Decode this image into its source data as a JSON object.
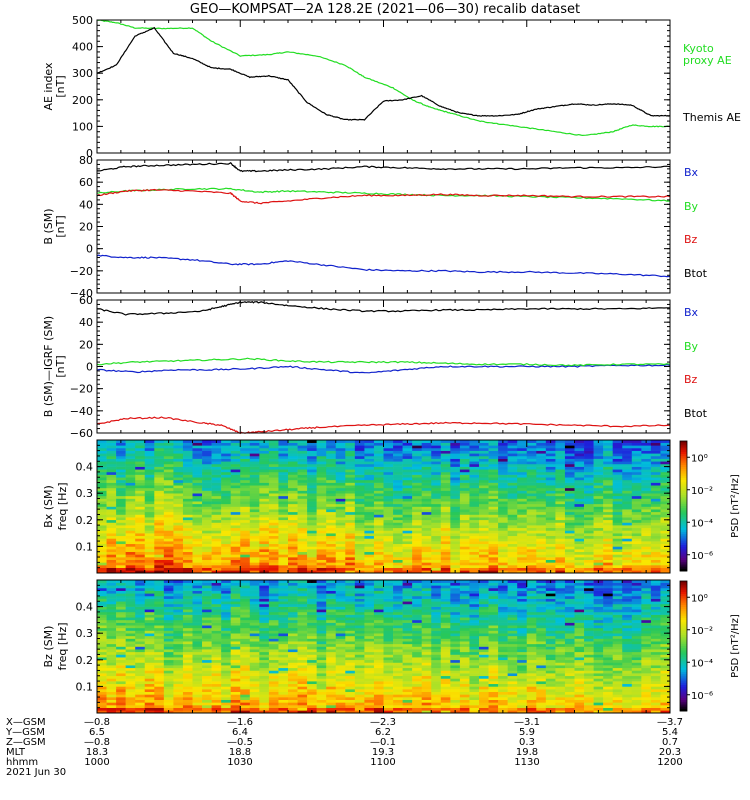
{
  "title": "GEO—KOMPSAT—2A 128.2E (2021—06—30) recalib dataset",
  "colors": {
    "black": "#000000",
    "green": "#22dd22",
    "red": "#dd1111",
    "blue": "#1122cc"
  },
  "chart_data": [
    {
      "type": "line",
      "ylabel_lines": [
        "AE index",
        "[nT]"
      ],
      "ylim": [
        0,
        500
      ],
      "yticks": [
        0,
        100,
        200,
        300,
        400,
        500
      ],
      "xlim": [
        0,
        120
      ],
      "legend_placement": "right",
      "series": [
        {
          "name": "Kyoto proxy AE",
          "label_lines": [
            "Kyoto",
            "proxy AE"
          ],
          "color": "#22dd22",
          "x": [
            0,
            4,
            8,
            14,
            20,
            24,
            30,
            36,
            40,
            46,
            52,
            56,
            62,
            66,
            70,
            74,
            80,
            84,
            90,
            96,
            102,
            108,
            112,
            116,
            120
          ],
          "y": [
            500,
            490,
            470,
            468,
            470,
            420,
            365,
            370,
            380,
            365,
            330,
            285,
            245,
            200,
            170,
            150,
            120,
            110,
            95,
            80,
            65,
            80,
            105,
            100,
            100
          ]
        },
        {
          "name": "Themis AE",
          "label_lines": [
            "Themis AE"
          ],
          "color": "#000000",
          "x": [
            0,
            4,
            8,
            12,
            16,
            20,
            24,
            28,
            32,
            36,
            40,
            44,
            48,
            52,
            56,
            60,
            64,
            68,
            72,
            76,
            80,
            84,
            88,
            92,
            96,
            100,
            104,
            108,
            112,
            116,
            120
          ],
          "y": [
            300,
            330,
            440,
            470,
            375,
            355,
            320,
            315,
            285,
            290,
            275,
            190,
            145,
            125,
            125,
            195,
            200,
            215,
            175,
            150,
            140,
            140,
            145,
            165,
            175,
            185,
            180,
            185,
            180,
            140,
            140
          ]
        }
      ]
    },
    {
      "type": "line",
      "ylabel_lines": [
        "B (SM)",
        "[nT]"
      ],
      "ylim": [
        -40,
        80
      ],
      "yticks": [
        -40,
        -20,
        0,
        20,
        40,
        60,
        80
      ],
      "xlim": [
        0,
        120
      ],
      "legend_placement": "right",
      "series": [
        {
          "name": "Bx",
          "color": "#1122cc",
          "x": [
            0,
            6,
            12,
            20,
            28,
            34,
            40,
            48,
            56,
            64,
            72,
            80,
            90,
            100,
            110,
            120
          ],
          "y": [
            -6,
            -8,
            -8,
            -10,
            -14,
            -14,
            -11,
            -15,
            -19,
            -20,
            -20,
            -21,
            -21,
            -22,
            -23,
            -25
          ]
        },
        {
          "name": "By",
          "color": "#22dd22",
          "x": [
            0,
            6,
            12,
            20,
            28,
            34,
            40,
            48,
            56,
            64,
            72,
            80,
            90,
            100,
            110,
            120
          ],
          "y": [
            50,
            52,
            53,
            54,
            54,
            51,
            52,
            51,
            50,
            49,
            48,
            48,
            47,
            46,
            45,
            43
          ]
        },
        {
          "name": "Bz",
          "color": "#dd1111",
          "x": [
            0,
            6,
            12,
            20,
            28,
            30,
            34,
            40,
            48,
            56,
            64,
            72,
            80,
            90,
            100,
            110,
            120
          ],
          "y": [
            48,
            52,
            53,
            52,
            50,
            43,
            41,
            43,
            46,
            48,
            48,
            49,
            48,
            48,
            47,
            47,
            47
          ]
        },
        {
          "name": "Btot",
          "color": "#000000",
          "x": [
            0,
            6,
            12,
            20,
            28,
            30,
            34,
            40,
            48,
            56,
            64,
            72,
            80,
            90,
            100,
            110,
            120
          ],
          "y": [
            70,
            74,
            75,
            76,
            77,
            70,
            70,
            71,
            72,
            74,
            73,
            72,
            72,
            72,
            73,
            73,
            74
          ]
        }
      ]
    },
    {
      "type": "line",
      "ylabel_lines": [
        "B (SM)—IGRF (SM)",
        "[nT]"
      ],
      "ylim": [
        -60,
        60
      ],
      "yticks": [
        -60,
        -40,
        -20,
        0,
        20,
        40,
        60
      ],
      "xlim": [
        0,
        120
      ],
      "legend_placement": "right",
      "series": [
        {
          "name": "Bx",
          "color": "#1122cc",
          "x": [
            0,
            8,
            16,
            24,
            32,
            40,
            48,
            56,
            64,
            72,
            80,
            90,
            100,
            110,
            120
          ],
          "y": [
            -3,
            -5,
            -3,
            -3,
            -2,
            0,
            -3,
            -6,
            -3,
            0,
            0,
            0,
            0,
            1,
            1
          ]
        },
        {
          "name": "By",
          "color": "#22dd22",
          "x": [
            0,
            8,
            16,
            24,
            32,
            40,
            48,
            56,
            64,
            72,
            80,
            90,
            100,
            110,
            120
          ],
          "y": [
            2,
            4,
            5,
            6,
            7,
            5,
            4,
            4,
            4,
            3,
            2,
            2,
            1,
            2,
            2
          ]
        },
        {
          "name": "Bz",
          "color": "#dd1111",
          "x": [
            0,
            6,
            14,
            22,
            26,
            30,
            34,
            40,
            46,
            56,
            64,
            72,
            80,
            90,
            100,
            110,
            120
          ],
          "y": [
            -52,
            -47,
            -46,
            -51,
            -53,
            -60,
            -59,
            -57,
            -55,
            -53,
            -52,
            -51,
            -51,
            -52,
            -53,
            -54,
            -53
          ]
        },
        {
          "name": "Btot",
          "color": "#000000",
          "x": [
            0,
            6,
            14,
            22,
            26,
            30,
            34,
            40,
            48,
            56,
            64,
            72,
            80,
            90,
            100,
            110,
            120
          ],
          "y": [
            52,
            47,
            48,
            50,
            54,
            58,
            58,
            55,
            52,
            50,
            50,
            51,
            51,
            52,
            52,
            52,
            53
          ]
        }
      ]
    },
    {
      "type": "heatmap",
      "ylabel_lines": [
        "Bx (SM)",
        "freq [Hz]"
      ],
      "ylim": [
        0,
        0.5
      ],
      "yticks": [
        0.1,
        0.2,
        0.3,
        0.4
      ],
      "colorbar": {
        "label": "PSD [nT²/Hz]",
        "ticks": [
          "10⁰",
          "10⁻²",
          "10⁻⁴",
          "10⁻⁶"
        ],
        "exponent_range": [
          -7,
          1
        ]
      }
    },
    {
      "type": "heatmap",
      "ylabel_lines": [
        "Bz (SM)",
        "freq [Hz]"
      ],
      "ylim": [
        0,
        0.5
      ],
      "yticks": [
        0.1,
        0.2,
        0.3,
        0.4
      ],
      "colorbar": {
        "label": "PSD [nT²/Hz]",
        "ticks": [
          "10⁰",
          "10⁻²",
          "10⁻⁴",
          "10⁻⁶"
        ],
        "exponent_range": [
          -7,
          1
        ]
      }
    }
  ],
  "xaxis": {
    "rows": [
      {
        "label": "X—GSM",
        "values": [
          "—0.8",
          "—1.6",
          "—2.3",
          "—3.1",
          "—3.7"
        ]
      },
      {
        "label": "Y—GSM",
        "values": [
          "6.5",
          "6.4",
          "6.2",
          "5.9",
          "5.4"
        ]
      },
      {
        "label": "Z—GSM",
        "values": [
          "—0.8",
          "—0.5",
          "—0.1",
          "0.3",
          "0.7"
        ]
      },
      {
        "label": "MLT",
        "values": [
          "18.3",
          "18.8",
          "19.3",
          "19.8",
          "20.3"
        ]
      },
      {
        "label": "hhmm",
        "values": [
          "1000",
          "1030",
          "1100",
          "1130",
          "1200"
        ]
      }
    ],
    "date": "2021 Jun 30"
  }
}
